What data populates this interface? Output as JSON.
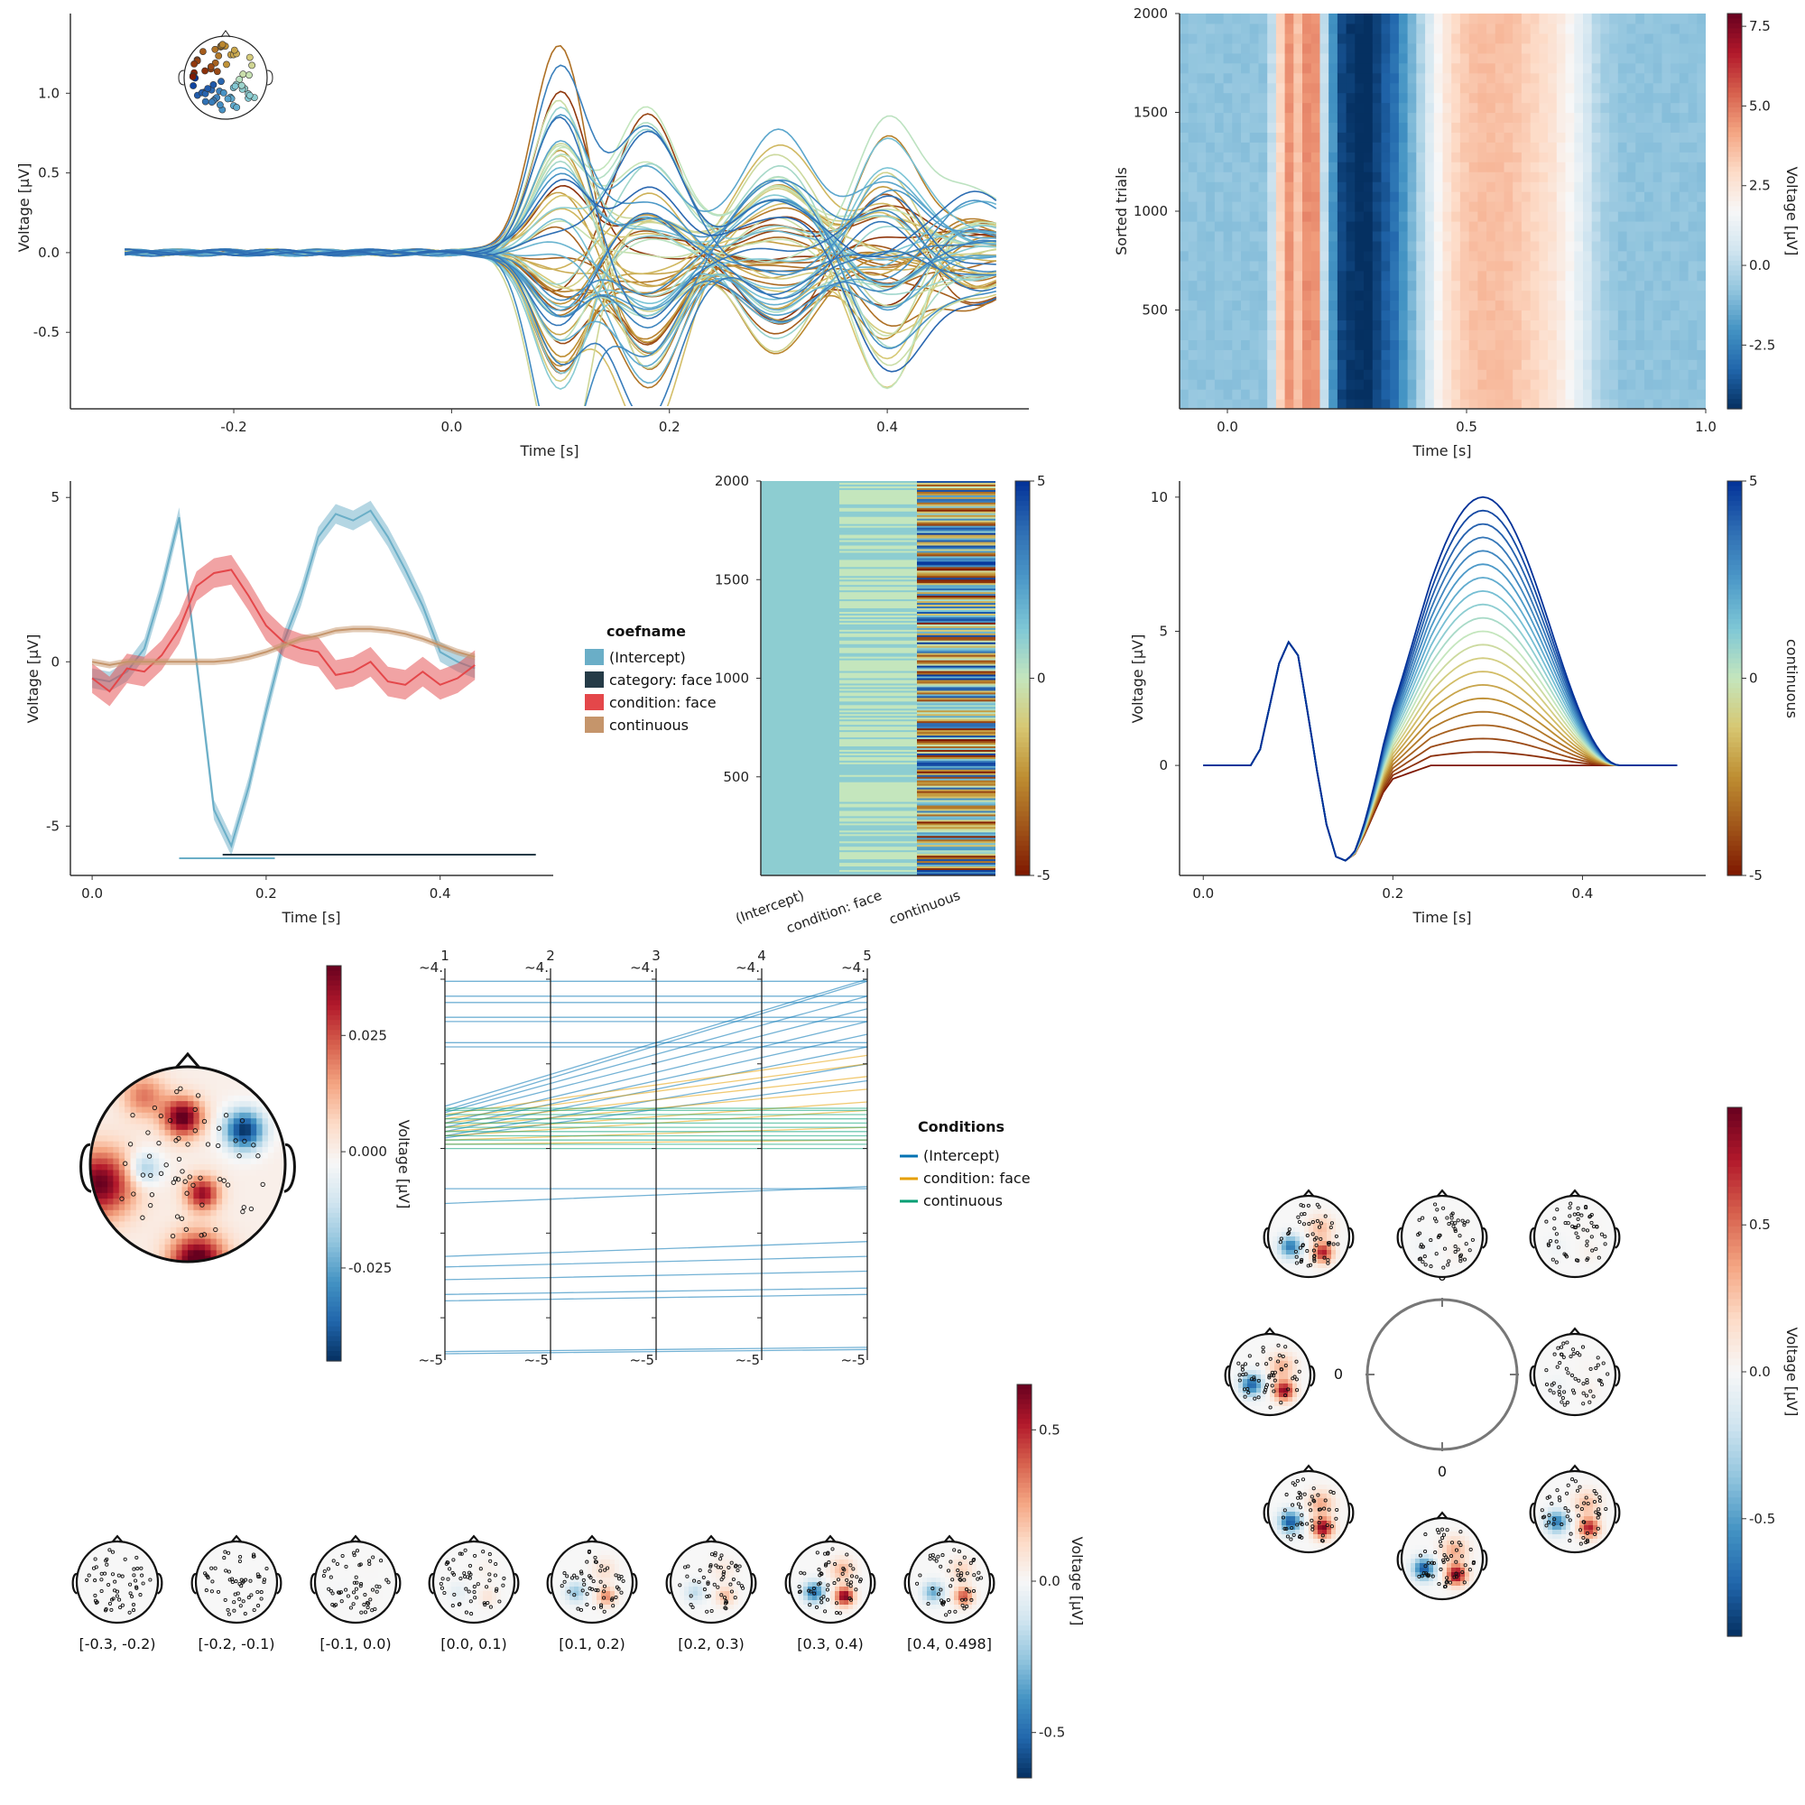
{
  "colors": {
    "rdbu": [
      "#053061",
      "#2166ac",
      "#4393c3",
      "#92c5de",
      "#d1e5f0",
      "#f7f7f7",
      "#fddbc7",
      "#f4a582",
      "#d6604d",
      "#b2182b",
      "#67001f"
    ],
    "roma": [
      "#7e1700",
      "#a1561a",
      "#be8e32",
      "#d7c772",
      "#c4e6bd",
      "#7fc7d6",
      "#4c99c8",
      "#2e6db3",
      "#023198"
    ],
    "intercept": "#6aaec7",
    "category_face": "#253b47",
    "condition_face": "#e4474a",
    "continuous": "#c5956b",
    "pcp_intercept": "#0072b2",
    "pcp_condition": "#e69f00",
    "pcp_continuous": "#009e73"
  },
  "chart_data": [
    {
      "type": "line",
      "panel": "butterfly",
      "xlabel": "Time [s]",
      "ylabel": "Voltage [µV]",
      "xticks": [
        "-0.2",
        "0.0",
        "0.2",
        "0.4"
      ],
      "xtick_values": [
        -0.2,
        0.0,
        0.2,
        0.4
      ],
      "yticks": [
        "-0.5",
        "0.0",
        "0.5",
        "1.0"
      ],
      "ytick_values": [
        -0.5,
        0.0,
        0.5,
        1.0
      ],
      "xlim": [
        -0.35,
        0.53
      ],
      "ylim": [
        -0.98,
        1.5
      ],
      "n_channels": 64,
      "time_range": [
        -0.3,
        0.5
      ],
      "components": [
        {
          "t": 0.1,
          "width": 0.025,
          "amp": 1.0
        },
        {
          "t": 0.18,
          "width": 0.03,
          "amp": -0.8
        },
        {
          "t": 0.3,
          "width": 0.035,
          "amp": 0.6
        },
        {
          "t": 0.4,
          "width": 0.03,
          "amp": 0.7
        },
        {
          "t": 0.48,
          "width": 0.04,
          "amp": 0.3
        }
      ],
      "grid": false,
      "legend": "channel topomap inset top-left"
    },
    {
      "type": "heatmap",
      "panel": "erpimage",
      "xlabel": "Time [s]",
      "ylabel": "Sorted trials",
      "colorbar_label": "Voltage [µV]",
      "xticks": [
        "0.0",
        "0.5",
        "1.0"
      ],
      "xtick_values": [
        0.0,
        0.5,
        1.0
      ],
      "yticks": [
        "500",
        "1000",
        "1500",
        "2000"
      ],
      "ytick_values": [
        500,
        1000,
        1500,
        2000
      ],
      "xlim": [
        -0.1,
        1.0
      ],
      "ylim": [
        0,
        2000
      ],
      "cbar_ticks": [
        "-2.5",
        "0.0",
        "2.5",
        "5.0",
        "7.5"
      ],
      "cbar_tick_values": [
        -2.5,
        0.0,
        2.5,
        5.0,
        7.5
      ],
      "clim": [
        -4.5,
        7.9
      ],
      "n_columns": 60,
      "column_values": [
        -0.8,
        -0.8,
        -0.8,
        -0.8,
        -0.8,
        -0.8,
        -0.8,
        -0.8,
        -0.8,
        -0.8,
        0.2,
        3.0,
        4.5,
        3.5,
        4.6,
        4.5,
        0.2,
        -2.0,
        -4.0,
        -4.3,
        -4.5,
        -4.5,
        -4.0,
        -3.5,
        -3.0,
        -2.0,
        -1.2,
        -0.2,
        0.8,
        1.8,
        2.5,
        3.0,
        3.3,
        3.5,
        3.6,
        3.6,
        3.6,
        3.5,
        3.4,
        3.2,
        3.0,
        2.8,
        2.6,
        2.2,
        1.8,
        1.2,
        0.6,
        0.0,
        -0.4,
        -0.6,
        -0.8,
        -0.8,
        -0.8,
        -0.8,
        -0.8,
        -0.8,
        -0.8,
        -0.8,
        -0.8,
        -0.8
      ]
    },
    {
      "type": "line",
      "panel": "erp_coefficients",
      "xlabel": "Time [s]",
      "ylabel": "Voltage [µV]",
      "xticks": [
        "0.0",
        "0.2",
        "0.4"
      ],
      "xtick_values": [
        0.0,
        0.2,
        0.4
      ],
      "yticks": [
        "-5",
        "0",
        "5"
      ],
      "ytick_values": [
        -5,
        0,
        5
      ],
      "xlim": [
        -0.025,
        0.53
      ],
      "ylim": [
        -6.5,
        5.5
      ],
      "legend_title": "coefname",
      "legend_labels": [
        "(Intercept)",
        "category: face",
        "condition: face",
        "continuous"
      ],
      "x": [
        0.0,
        0.02,
        0.04,
        0.06,
        0.08,
        0.1,
        0.12,
        0.14,
        0.16,
        0.18,
        0.2,
        0.22,
        0.24,
        0.26,
        0.28,
        0.3,
        0.32,
        0.34,
        0.36,
        0.38,
        0.4,
        0.42,
        0.44
      ],
      "series": [
        {
          "name": "(Intercept)",
          "values": [
            -0.5,
            -0.6,
            -0.3,
            0.4,
            2.2,
            4.4,
            0.0,
            -4.5,
            -5.6,
            -3.8,
            -1.5,
            0.6,
            2.0,
            3.8,
            4.5,
            4.3,
            4.6,
            3.8,
            2.8,
            1.7,
            0.3,
            0.0,
            -0.2
          ],
          "band": 0.3
        },
        {
          "name": "condition: face",
          "values": [
            -0.5,
            -0.9,
            -0.2,
            -0.3,
            0.2,
            1.0,
            2.3,
            2.7,
            2.8,
            2.0,
            1.1,
            0.6,
            0.4,
            0.3,
            -0.4,
            -0.3,
            0.0,
            -0.6,
            -0.7,
            -0.3,
            -0.7,
            -0.5,
            -0.1
          ],
          "band": 0.45
        },
        {
          "name": "continuous",
          "values": [
            0.0,
            -0.1,
            0.0,
            0.0,
            0.0,
            0.0,
            0.0,
            0.0,
            0.05,
            0.15,
            0.3,
            0.5,
            0.7,
            0.8,
            0.95,
            1.0,
            1.0,
            0.95,
            0.85,
            0.7,
            0.5,
            0.3,
            0.15
          ],
          "band": 0.1
        }
      ],
      "significance": [
        {
          "name": "(Intercept)",
          "x": [
            0.1,
            0.21
          ]
        },
        {
          "name": "category: face",
          "x": [
            0.15,
            0.51
          ]
        }
      ]
    },
    {
      "type": "heatmap",
      "panel": "designmatrix",
      "columns": [
        "(Intercept)",
        "condition: face",
        "continuous"
      ],
      "yticks": [
        "500",
        "1000",
        "1500",
        "2000"
      ],
      "ytick_values": [
        500,
        1000,
        1500,
        2000
      ],
      "ylim": [
        0,
        2000
      ],
      "cbar_ticks": [
        "-5",
        "0",
        "5"
      ],
      "cbar_tick_values": [
        -5,
        0,
        5
      ],
      "clim": [
        -5,
        5
      ]
    },
    {
      "type": "line",
      "panel": "effects",
      "xlabel": "Time [s]",
      "ylabel": "Voltage [µV]",
      "xticks": [
        "0.0",
        "0.2",
        "0.4"
      ],
      "xtick_values": [
        0.0,
        0.2,
        0.4
      ],
      "yticks": [
        "0",
        "5",
        "10"
      ],
      "ytick_values": [
        0,
        5,
        10
      ],
      "xlim": [
        -0.025,
        0.53
      ],
      "ylim": [
        -4.1,
        10.6
      ],
      "colorbar_label": "continuous",
      "cbar_ticks": [
        "-5",
        "0",
        "5"
      ],
      "cbar_tick_values": [
        -5,
        0,
        5
      ],
      "base_x": [
        0.0,
        0.02,
        0.04,
        0.05,
        0.06,
        0.07,
        0.08,
        0.09,
        0.1,
        0.11,
        0.12,
        0.13,
        0.14,
        0.15,
        0.16,
        0.17,
        0.18,
        0.19,
        0.2
      ],
      "base_y": [
        0.0,
        0.0,
        0.0,
        0.0,
        0.6,
        2.2,
        3.8,
        4.6,
        4.1,
        2.0,
        -0.2,
        -2.2,
        -3.4,
        -3.55,
        -3.3,
        -2.6,
        -1.8,
        -1.0,
        -0.5
      ],
      "effect_peak_time": 0.3,
      "effect_start": 0.15,
      "effect_end": 0.44,
      "peak_min": 0.0,
      "peak_max": 10.0,
      "n_lines": 21
    },
    {
      "type": "heatmap",
      "panel": "topoplot",
      "ylabel": "Voltage [µV]",
      "cbar_ticks": [
        "-0.025",
        "0.000",
        "0.025"
      ],
      "cbar_tick_values": [
        -0.025,
        0.0,
        0.025
      ],
      "clim": [
        -0.045,
        0.04
      ]
    },
    {
      "type": "line",
      "panel": "parallel_coordinates",
      "legend_title": "Conditions",
      "legend_labels": [
        "(Intercept)",
        "condition: face",
        "continuous"
      ],
      "axis_labels": [
        "1",
        "2",
        "3",
        "4",
        "5"
      ],
      "axis_top_labels": [
        "~4.",
        "~4.",
        "~4.",
        "~4.",
        "~4."
      ],
      "axis_bottom_labels": [
        "~-5",
        "~-5",
        "~-5",
        "~-5",
        "~-5"
      ],
      "ylabel": "Voltage [µV]",
      "ylim": [
        -5,
        4
      ],
      "intercept_start": [
        3.95,
        3.6,
        3.45,
        3.1,
        3.0,
        2.5,
        2.4,
        1.0,
        0.9,
        0.85,
        0.75,
        0.6,
        0.5,
        0.4,
        0.3,
        0.25,
        -0.95,
        -1.3,
        -2.55,
        -2.8,
        -3.1,
        -3.45,
        -3.6,
        -4.8,
        -4.85
      ],
      "intercept_end": [
        3.95,
        3.6,
        3.45,
        3.1,
        3.0,
        2.5,
        2.4,
        4.0,
        3.95,
        3.6,
        3.3,
        3.0,
        2.7,
        2.4,
        2.0,
        1.6,
        -0.95,
        -0.9,
        -2.2,
        -2.55,
        -2.9,
        -3.3,
        -3.45,
        -4.7,
        -4.75
      ],
      "condition_start": [
        0.8,
        0.7,
        0.6,
        0.5,
        0.4,
        0.3,
        0.2,
        0.1
      ],
      "condition_end": [
        2.2,
        2.0,
        1.7,
        1.4,
        1.1,
        0.9,
        0.5,
        0.2
      ],
      "continuous_values": [
        0.0,
        0.1,
        0.2,
        0.3,
        0.4,
        0.5,
        0.6,
        0.7,
        0.8,
        0.9,
        0.95
      ]
    },
    {
      "type": "heatmap",
      "panel": "topo_series",
      "ylabel": "Voltage [µV]",
      "bin_labels": [
        "[-0.3, -0.2)",
        "[-0.2, -0.1)",
        "[-0.1, 0.0)",
        "[0.0, 0.1)",
        "[0.1, 0.2)",
        "[0.2, 0.3)",
        "[0.3, 0.4)",
        "[0.4, 0.498]"
      ],
      "bin_amplitude": [
        0.0,
        0.0,
        0.02,
        0.12,
        0.45,
        0.3,
        0.9,
        0.6
      ],
      "cbar_ticks": [
        "-0.5",
        "0.0",
        "0.5"
      ],
      "cbar_tick_values": [
        -0.5,
        0.0,
        0.5
      ],
      "clim": [
        -0.65,
        0.65
      ]
    },
    {
      "type": "heatmap",
      "panel": "circular_topos",
      "ylabel": "Voltage [µV]",
      "ring_labels": [
        "0",
        "0",
        "0",
        "0"
      ],
      "topo_amplitude": [
        0.05,
        0.05,
        0.05,
        0.8,
        0.95,
        0.95,
        0.9,
        0.8
      ],
      "cbar_ticks": [
        "-0.5",
        "0.0",
        "0.5"
      ],
      "cbar_tick_values": [
        -0.5,
        0.0,
        0.5
      ],
      "clim": [
        -0.9,
        0.9
      ]
    }
  ]
}
